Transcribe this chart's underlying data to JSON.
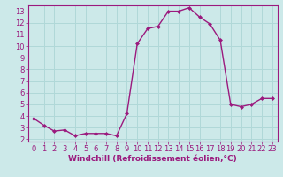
{
  "x": [
    0,
    1,
    2,
    3,
    4,
    5,
    6,
    7,
    8,
    9,
    10,
    11,
    12,
    13,
    14,
    15,
    16,
    17,
    18,
    19,
    20,
    21,
    22,
    23
  ],
  "y": [
    3.8,
    3.2,
    2.7,
    2.8,
    2.3,
    2.5,
    2.5,
    2.5,
    2.3,
    4.2,
    10.2,
    11.5,
    11.7,
    13.0,
    13.0,
    13.3,
    12.5,
    11.9,
    10.5,
    5.0,
    4.8,
    5.0,
    5.5,
    5.5
  ],
  "line_color": "#9b1a7e",
  "marker": "D",
  "marker_size": 2,
  "bg_color": "#cce9e9",
  "grid_color": "#b0d8d8",
  "xlabel": "Windchill (Refroidissement éolien,°C)",
  "xlabel_color": "#9b1a7e",
  "tick_color": "#9b1a7e",
  "xlim": [
    -0.5,
    23.5
  ],
  "ylim": [
    1.8,
    13.5
  ],
  "yticks": [
    2,
    3,
    4,
    5,
    6,
    7,
    8,
    9,
    10,
    11,
    12,
    13
  ],
  "xticks": [
    0,
    1,
    2,
    3,
    4,
    5,
    6,
    7,
    8,
    9,
    10,
    11,
    12,
    13,
    14,
    15,
    16,
    17,
    18,
    19,
    20,
    21,
    22,
    23
  ],
  "line_width": 1.0,
  "tick_fontsize": 6,
  "xlabel_fontsize": 6.5
}
